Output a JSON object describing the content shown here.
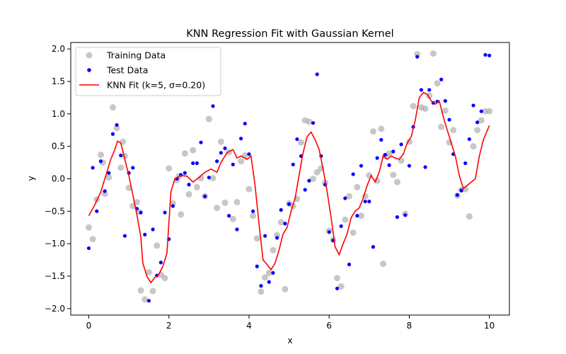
{
  "chart_data": {
    "type": "scatter",
    "title": "KNN Regression Fit with Gaussian Kernel",
    "xlabel": "x",
    "ylabel": "y",
    "xlim": [
      -0.45,
      10.5
    ],
    "ylim": [
      -2.1,
      2.1
    ],
    "xticks": [
      0,
      2,
      4,
      6,
      8,
      10
    ],
    "yticks": [
      -2.0,
      -1.5,
      -1.0,
      -0.5,
      0.0,
      0.5,
      1.0,
      1.5,
      2.0
    ],
    "xtick_labels": [
      "0",
      "2",
      "4",
      "6",
      "8",
      "10"
    ],
    "ytick_labels": [
      "−2.0",
      "−1.5",
      "−1.0",
      "−0.5",
      "0.0",
      "0.5",
      "1.0",
      "1.5",
      "2.0"
    ],
    "grid": false,
    "legend_position": "top-left",
    "colors": {
      "training": "#a9a9a9",
      "test": "#0000ff",
      "fit": "#ff0000"
    },
    "series": [
      {
        "name": "Training Data",
        "kind": "scatter",
        "x": [
          0.0,
          0.1,
          0.2,
          0.3,
          0.35,
          0.4,
          0.5,
          0.6,
          0.7,
          0.8,
          0.85,
          0.9,
          1.0,
          1.1,
          1.2,
          1.25,
          1.3,
          1.4,
          1.5,
          1.6,
          1.7,
          1.8,
          1.9,
          2.0,
          2.1,
          2.2,
          2.25,
          2.3,
          2.4,
          2.5,
          2.6,
          2.7,
          2.8,
          2.9,
          3.0,
          3.1,
          3.2,
          3.3,
          3.4,
          3.5,
          3.6,
          3.7,
          3.8,
          3.9,
          4.0,
          4.1,
          4.2,
          4.3,
          4.4,
          4.5,
          4.6,
          4.7,
          4.8,
          4.9,
          5.0,
          5.1,
          5.2,
          5.3,
          5.4,
          5.5,
          5.6,
          5.7,
          5.8,
          5.9,
          6.0,
          6.1,
          6.2,
          6.3,
          6.4,
          6.5,
          6.6,
          6.7,
          6.8,
          6.9,
          7.0,
          7.1,
          7.2,
          7.3,
          7.35,
          7.4,
          7.5,
          7.6,
          7.7,
          7.8,
          7.9,
          8.0,
          8.1,
          8.2,
          8.3,
          8.4,
          8.5,
          8.6,
          8.7,
          8.8,
          8.9,
          9.0,
          9.1,
          9.2,
          9.3,
          9.4,
          9.5,
          9.6,
          9.7,
          9.8,
          9.9,
          10.0
        ],
        "y": [
          -0.75,
          -0.93,
          -0.32,
          0.37,
          0.25,
          -0.23,
          0.02,
          1.1,
          0.78,
          0.17,
          0.57,
          0.35,
          -0.14,
          -0.42,
          -0.36,
          -0.51,
          -1.72,
          -1.86,
          -1.44,
          -1.73,
          -1.03,
          -1.48,
          -1.53,
          0.16,
          -0.38,
          -0.02,
          0.04,
          -0.55,
          0.39,
          -0.24,
          0.44,
          -0.13,
          0.01,
          -0.27,
          0.92,
          0.01,
          -0.45,
          0.57,
          -0.37,
          0.41,
          -0.62,
          -0.36,
          0.27,
          0.36,
          -0.16,
          -0.57,
          -0.92,
          -1.74,
          -1.52,
          -1.45,
          -1.1,
          -0.87,
          -0.67,
          -1.7,
          -0.38,
          -0.42,
          -0.31,
          0.56,
          0.9,
          0.88,
          0.0,
          0.1,
          0.16,
          -0.06,
          -0.8,
          -0.94,
          -1.53,
          -1.66,
          -0.63,
          -0.27,
          -0.83,
          -0.13,
          -0.57,
          -0.27,
          0.05,
          0.73,
          -0.03,
          0.77,
          -1.31,
          0.35,
          0.39,
          0.06,
          -0.05,
          0.28,
          -0.54,
          0.57,
          1.12,
          1.92,
          1.1,
          1.08,
          1.28,
          1.93,
          1.47,
          0.8,
          1.05,
          0.56,
          0.75,
          -0.26,
          -0.17,
          -0.16,
          -0.58,
          0.5,
          0.75,
          0.9,
          1.04,
          1.04
        ]
      },
      {
        "name": "Test Data",
        "kind": "scatter",
        "x": [
          0.0,
          0.1,
          0.2,
          0.3,
          0.4,
          0.5,
          0.6,
          0.7,
          0.8,
          0.9,
          1.0,
          1.1,
          1.2,
          1.3,
          1.4,
          1.5,
          1.6,
          1.7,
          1.8,
          1.9,
          2.0,
          2.1,
          2.2,
          2.3,
          2.4,
          2.5,
          2.6,
          2.7,
          2.8,
          2.9,
          3.0,
          3.1,
          3.2,
          3.3,
          3.4,
          3.5,
          3.6,
          3.7,
          3.8,
          3.9,
          4.0,
          4.1,
          4.2,
          4.3,
          4.4,
          4.5,
          4.6,
          4.7,
          4.8,
          4.9,
          5.0,
          5.1,
          5.2,
          5.3,
          5.4,
          5.5,
          5.6,
          5.7,
          5.8,
          5.9,
          6.0,
          6.1,
          6.2,
          6.3,
          6.4,
          6.5,
          6.6,
          6.7,
          6.8,
          6.9,
          7.0,
          7.1,
          7.2,
          7.3,
          7.4,
          7.5,
          7.6,
          7.7,
          7.8,
          7.9,
          8.0,
          8.1,
          8.2,
          8.3,
          8.4,
          8.5,
          8.6,
          8.7,
          8.8,
          8.9,
          9.0,
          9.1,
          9.2,
          9.3,
          9.4,
          9.5,
          9.6,
          9.7,
          9.8,
          9.9,
          10.0
        ],
        "y": [
          -1.07,
          0.17,
          -0.5,
          0.27,
          -0.19,
          0.09,
          0.69,
          0.83,
          0.36,
          -0.88,
          0.09,
          0.17,
          -0.46,
          -0.52,
          -0.86,
          -1.88,
          -0.78,
          -1.49,
          -1.29,
          -0.52,
          -0.93,
          -0.42,
          0.0,
          0.06,
          0.09,
          -0.09,
          0.24,
          0.24,
          0.56,
          -0.27,
          0.02,
          1.12,
          0.27,
          0.4,
          0.47,
          -0.57,
          0.22,
          -0.78,
          0.62,
          0.85,
          0.38,
          -0.5,
          -1.35,
          -1.65,
          -0.88,
          -1.59,
          -1.45,
          -0.91,
          -0.48,
          -0.69,
          -0.39,
          0.22,
          0.61,
          0.35,
          -0.17,
          -0.03,
          0.86,
          1.61,
          0.35,
          -0.09,
          -0.82,
          -0.95,
          -1.69,
          -0.73,
          -0.3,
          -1.32,
          0.07,
          -0.57,
          0.2,
          -0.35,
          -0.35,
          -1.05,
          0.32,
          0.6,
          0.37,
          0.21,
          0.42,
          -0.59,
          0.53,
          -0.56,
          0.2,
          0.8,
          1.88,
          1.37,
          0.18,
          1.37,
          1.17,
          1.19,
          1.53,
          1.2,
          0.91,
          0.38,
          -0.25,
          -0.18,
          0.24,
          0.61,
          1.13,
          0.87,
          1.04,
          1.91,
          1.9
        ]
      },
      {
        "name": "KNN Fit (k=5, σ=0.20)",
        "kind": "line",
        "x": [
          0.0,
          0.15,
          0.3,
          0.45,
          0.55,
          0.65,
          0.72,
          0.8,
          0.9,
          1.0,
          1.1,
          1.2,
          1.3,
          1.35,
          1.45,
          1.55,
          1.65,
          1.75,
          1.85,
          1.95,
          2.05,
          2.15,
          2.3,
          2.45,
          2.6,
          2.75,
          2.9,
          3.05,
          3.2,
          3.3,
          3.45,
          3.6,
          3.7,
          3.8,
          3.95,
          4.05,
          4.15,
          4.25,
          4.35,
          4.45,
          4.55,
          4.65,
          4.75,
          4.85,
          4.95,
          5.05,
          5.15,
          5.25,
          5.35,
          5.45,
          5.55,
          5.65,
          5.75,
          5.85,
          5.95,
          6.05,
          6.15,
          6.25,
          6.35,
          6.45,
          6.55,
          6.65,
          6.75,
          6.85,
          6.95,
          7.05,
          7.15,
          7.25,
          7.35,
          7.45,
          7.55,
          7.65,
          7.75,
          7.85,
          7.95,
          8.05,
          8.15,
          8.25,
          8.35,
          8.45,
          8.55,
          8.65,
          8.75,
          8.85,
          8.95,
          9.05,
          9.15,
          9.25,
          9.35,
          9.45,
          9.55,
          9.65,
          9.75,
          9.85,
          10.0
        ],
        "y": [
          -0.57,
          -0.4,
          -0.2,
          0.1,
          0.3,
          0.45,
          0.58,
          0.55,
          0.3,
          0.05,
          -0.25,
          -0.55,
          -0.9,
          -1.3,
          -1.5,
          -1.6,
          -1.52,
          -1.47,
          -1.35,
          -1.15,
          -0.2,
          0.0,
          0.05,
          0.04,
          -0.05,
          0.02,
          0.1,
          0.15,
          0.1,
          0.25,
          0.4,
          0.45,
          0.32,
          0.35,
          0.3,
          0.35,
          -0.1,
          -0.7,
          -1.25,
          -1.32,
          -1.4,
          -1.3,
          -1.1,
          -0.85,
          -0.75,
          -0.5,
          -0.3,
          0.05,
          0.4,
          0.65,
          0.72,
          0.6,
          0.45,
          0.15,
          -0.2,
          -0.6,
          -1.05,
          -1.17,
          -1.0,
          -0.85,
          -0.6,
          -0.5,
          -0.45,
          -0.3,
          -0.1,
          0.05,
          -0.05,
          0.1,
          0.35,
          0.3,
          0.35,
          0.32,
          0.3,
          0.38,
          0.55,
          0.65,
          0.9,
          1.25,
          1.33,
          1.3,
          1.2,
          1.15,
          1.2,
          0.95,
          0.75,
          0.55,
          0.35,
          0.05,
          -0.15,
          -0.1,
          -0.05,
          0.0,
          0.35,
          0.6,
          0.82
        ]
      }
    ]
  }
}
